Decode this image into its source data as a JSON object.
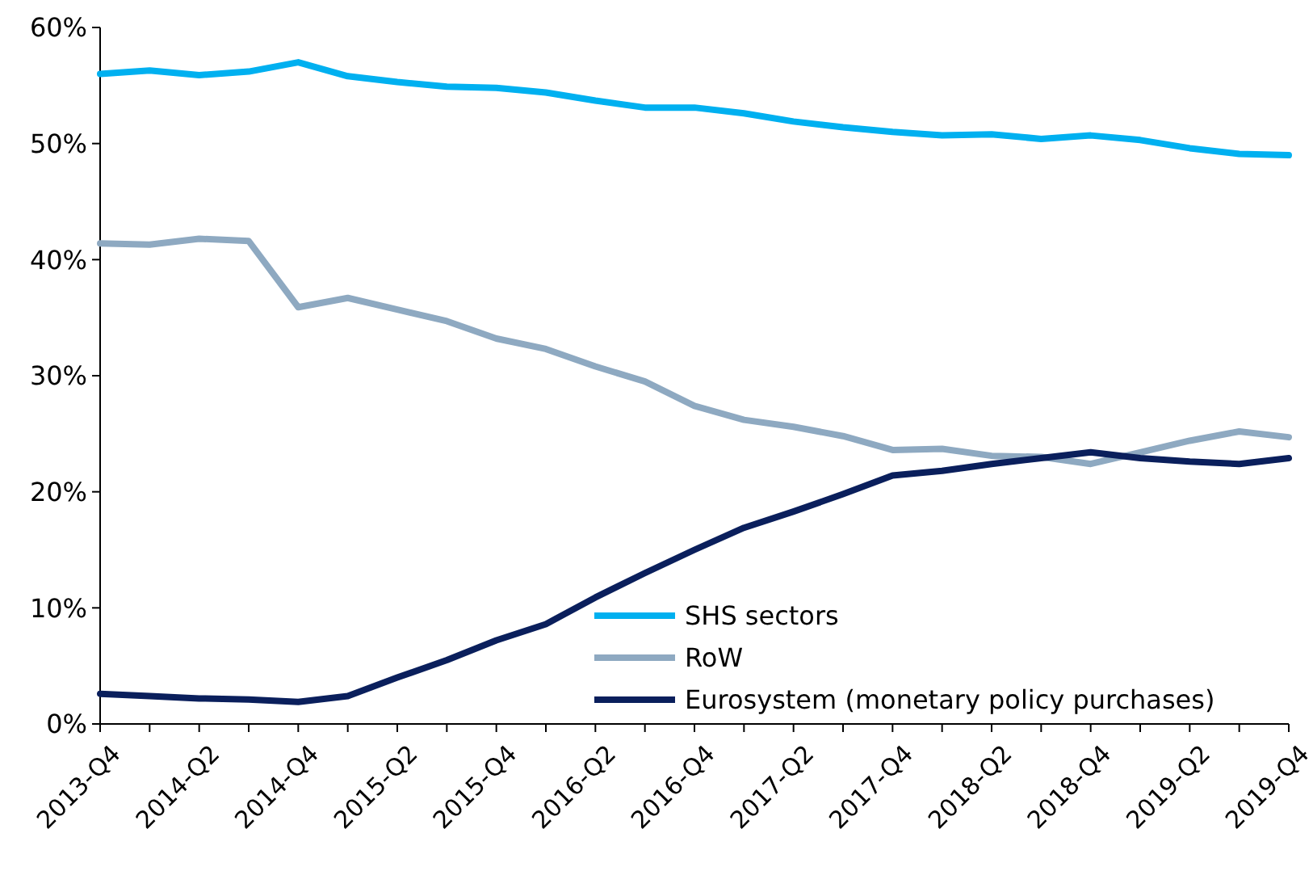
{
  "chart_data": {
    "type": "line",
    "categories": [
      "2013-Q4",
      null,
      "2014-Q2",
      null,
      "2014-Q4",
      null,
      "2015-Q2",
      null,
      "2015-Q4",
      null,
      "2016-Q2",
      null,
      "2016-Q4",
      null,
      "2017-Q2",
      null,
      "2017-Q4",
      null,
      "2018-Q2",
      null,
      "2018-Q4",
      null,
      "2019-Q2",
      null,
      "2019-Q4"
    ],
    "series": [
      {
        "name": "SHS sectors",
        "color": "#00b0f0",
        "values": [
          56.0,
          56.3,
          55.9,
          56.2,
          57.0,
          55.8,
          55.3,
          54.9,
          54.8,
          54.4,
          53.7,
          53.1,
          53.1,
          52.6,
          51.9,
          51.4,
          51.0,
          50.7,
          50.8,
          50.4,
          50.7,
          50.3,
          49.6,
          49.1,
          49.0
        ]
      },
      {
        "name": "RoW",
        "color": "#8ea9c1",
        "values": [
          41.4,
          41.3,
          41.8,
          41.6,
          35.9,
          36.7,
          35.7,
          34.7,
          33.2,
          32.3,
          30.8,
          29.5,
          27.4,
          26.2,
          25.6,
          24.8,
          23.6,
          23.7,
          23.1,
          23.0,
          22.4,
          23.4,
          24.4,
          25.2,
          24.7
        ]
      },
      {
        "name": "Eurosystem (monetary policy purchases)",
        "color": "#0a1f5c",
        "values": [
          2.6,
          2.4,
          2.2,
          2.1,
          1.9,
          2.4,
          4.0,
          5.5,
          7.2,
          8.6,
          10.9,
          13.0,
          15.0,
          16.9,
          18.3,
          19.8,
          21.4,
          21.8,
          22.4,
          22.9,
          23.4,
          22.9,
          22.6,
          22.4,
          22.9
        ]
      }
    ],
    "ylim": [
      0,
      60
    ],
    "yticks": [
      {
        "value": 0,
        "label": "0%"
      },
      {
        "value": 10,
        "label": "10%"
      },
      {
        "value": 20,
        "label": "20%"
      },
      {
        "value": 30,
        "label": "30%"
      },
      {
        "value": 40,
        "label": "40%"
      },
      {
        "value": 50,
        "label": "50%"
      },
      {
        "value": 60,
        "label": "60%"
      }
    ],
    "grid": false,
    "legend": "bottom right",
    "marker": "none",
    "line_style": "solid"
  }
}
